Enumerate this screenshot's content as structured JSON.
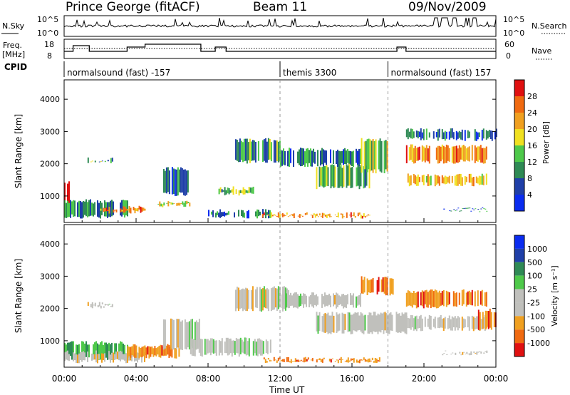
{
  "header": {
    "station": "Prince George (fitACF)",
    "beam": "Beam 11",
    "date": "09/Nov/2009"
  },
  "sky_panel": {
    "left_label": "N.Sky",
    "right_label": "N.Search",
    "left_ticks": [
      "10^5",
      "10^0"
    ],
    "right_ticks": [
      "10^5",
      "10^0"
    ]
  },
  "freq_panel": {
    "left_label": "Freq.",
    "left_unit": "[MHz]",
    "left_ticks": [
      "18",
      "8"
    ],
    "right_label": "Nave",
    "right_ticks": [
      "60",
      "0"
    ]
  },
  "cpid": {
    "label": "CPID",
    "segments": [
      {
        "start": 0,
        "end": 12,
        "name": "normalsound (fast) -157"
      },
      {
        "start": 12,
        "end": 18,
        "name": "themis 3300"
      },
      {
        "start": 18,
        "end": 24,
        "name": "normalsound (fast) 157"
      }
    ]
  },
  "power_panel": {
    "ylabel": "Slant Range [km]",
    "yticks": [
      "4000",
      "3000",
      "2000",
      "1000"
    ],
    "colorbar_label": "Power [dB]",
    "colorbar_ticks": [
      "28",
      "24",
      "20",
      "16",
      "12",
      "8",
      "4"
    ]
  },
  "velocity_panel": {
    "ylabel": "Slant Range [km]",
    "yticks": [
      "4000",
      "3000",
      "2000",
      "1000"
    ],
    "colorbar_label": "Velocity [m s⁻¹]",
    "colorbar_ticks": [
      "1000",
      "500",
      "100",
      "25",
      "-25",
      "-100",
      "-500",
      "-1000"
    ]
  },
  "xaxis": {
    "label": "Time UT",
    "ticks": [
      "00:00",
      "04:00",
      "08:00",
      "12:00",
      "16:00",
      "20:00",
      "00:00"
    ]
  },
  "colors": {
    "power_scale": [
      "#0a2cf0",
      "#1f3fa8",
      "#2f8a55",
      "#4ec94a",
      "#f0e020",
      "#f0a020",
      "#f06a10",
      "#e01010"
    ],
    "velocity_scale": [
      "#e01010",
      "#f06a10",
      "#f0a020",
      "#c0c0bc",
      "#c0c0bc",
      "#4ec94a",
      "#2f8a55",
      "#1f3fa8",
      "#0a2cf0"
    ]
  },
  "chart_data": [
    {
      "type": "heatmap",
      "title": "Power",
      "xlabel": "Time UT",
      "ylabel": "Slant Range [km]",
      "xlim_hours": [
        0,
        24
      ],
      "ylim_km": [
        180,
        4600
      ],
      "colorbar": "Power [dB]",
      "bands": [
        {
          "t0": 0.0,
          "t1": 0.3,
          "r0": 500,
          "r1": 1500,
          "value_db": 26
        },
        {
          "t0": 0.0,
          "t1": 3.5,
          "r0": 300,
          "r1": 900,
          "value_db": 10
        },
        {
          "t0": 2.0,
          "t1": 4.5,
          "r0": 450,
          "r1": 700,
          "value_db": 22
        },
        {
          "t0": 1.3,
          "t1": 2.7,
          "r0": 2000,
          "r1": 2200,
          "value_db": 12
        },
        {
          "t0": 5.2,
          "t1": 7.0,
          "r0": 650,
          "r1": 850,
          "value_db": 18
        },
        {
          "t0": 5.5,
          "t1": 7.0,
          "r0": 1000,
          "r1": 1900,
          "value_db": 8
        },
        {
          "t0": 8.5,
          "t1": 10.5,
          "r0": 1000,
          "r1": 1300,
          "value_db": 14
        },
        {
          "t0": 8.0,
          "t1": 11.5,
          "r0": 300,
          "r1": 600,
          "value_db": 10
        },
        {
          "t0": 9.5,
          "t1": 12.0,
          "r0": 2000,
          "r1": 2800,
          "value_db": 12
        },
        {
          "t0": 11.0,
          "t1": 17.0,
          "r0": 300,
          "r1": 500,
          "value_db": 22
        },
        {
          "t0": 12.0,
          "t1": 16.5,
          "r0": 1900,
          "r1": 2500,
          "value_db": 10
        },
        {
          "t0": 14.0,
          "t1": 17.0,
          "r0": 1200,
          "r1": 2000,
          "value_db": 14
        },
        {
          "t0": 16.5,
          "t1": 18.0,
          "r0": 1700,
          "r1": 2800,
          "value_db": 16
        },
        {
          "t0": 19.0,
          "t1": 23.5,
          "r0": 2000,
          "r1": 2600,
          "value_db": 22
        },
        {
          "t0": 19.0,
          "t1": 23.5,
          "r0": 1300,
          "r1": 1700,
          "value_db": 20
        },
        {
          "t0": 19.0,
          "t1": 24.0,
          "r0": 2700,
          "r1": 3100,
          "value_db": 8
        },
        {
          "t0": 21.0,
          "t1": 23.5,
          "r0": 550,
          "r1": 650,
          "value_db": 8
        }
      ]
    },
    {
      "type": "heatmap",
      "title": "Velocity",
      "xlabel": "Time UT",
      "ylabel": "Slant Range [km]",
      "xlim_hours": [
        0,
        24
      ],
      "ylim_km": [
        180,
        4600
      ],
      "colorbar": "Velocity [m s⁻¹]",
      "bands": [
        {
          "t0": 0.0,
          "t1": 3.5,
          "r0": 400,
          "r1": 1000,
          "value_ms": 50
        },
        {
          "t0": 0.0,
          "t1": 4.5,
          "r0": 300,
          "r1": 700,
          "value_ms": 0
        },
        {
          "t0": 1.3,
          "t1": 2.7,
          "r0": 2000,
          "r1": 2200,
          "value_ms": 0
        },
        {
          "t0": 3.5,
          "t1": 6.5,
          "r0": 450,
          "r1": 900,
          "value_ms": -150
        },
        {
          "t0": 5.5,
          "t1": 7.5,
          "r0": 700,
          "r1": 1700,
          "value_ms": 0
        },
        {
          "t0": 7.0,
          "t1": 11.5,
          "r0": 500,
          "r1": 1100,
          "value_ms": 0
        },
        {
          "t0": 9.5,
          "t1": 12.5,
          "r0": 1900,
          "r1": 2700,
          "value_ms": 0
        },
        {
          "t0": 11.0,
          "t1": 17.5,
          "r0": 300,
          "r1": 500,
          "value_ms": -150
        },
        {
          "t0": 12.0,
          "t1": 16.5,
          "r0": 2000,
          "r1": 2500,
          "value_ms": 0
        },
        {
          "t0": 14.0,
          "t1": 19.0,
          "r0": 1200,
          "r1": 1900,
          "value_ms": 0
        },
        {
          "t0": 16.5,
          "t1": 18.3,
          "r0": 2400,
          "r1": 3000,
          "value_ms": -200
        },
        {
          "t0": 19.0,
          "t1": 23.5,
          "r0": 2000,
          "r1": 2600,
          "value_ms": -300
        },
        {
          "t0": 19.0,
          "t1": 23.5,
          "r0": 1300,
          "r1": 1800,
          "value_ms": 0
        },
        {
          "t0": 23.0,
          "t1": 24.0,
          "r0": 1300,
          "r1": 2000,
          "value_ms": -300
        },
        {
          "t0": 21.0,
          "t1": 23.5,
          "r0": 550,
          "r1": 700,
          "value_ms": 0
        }
      ]
    }
  ]
}
